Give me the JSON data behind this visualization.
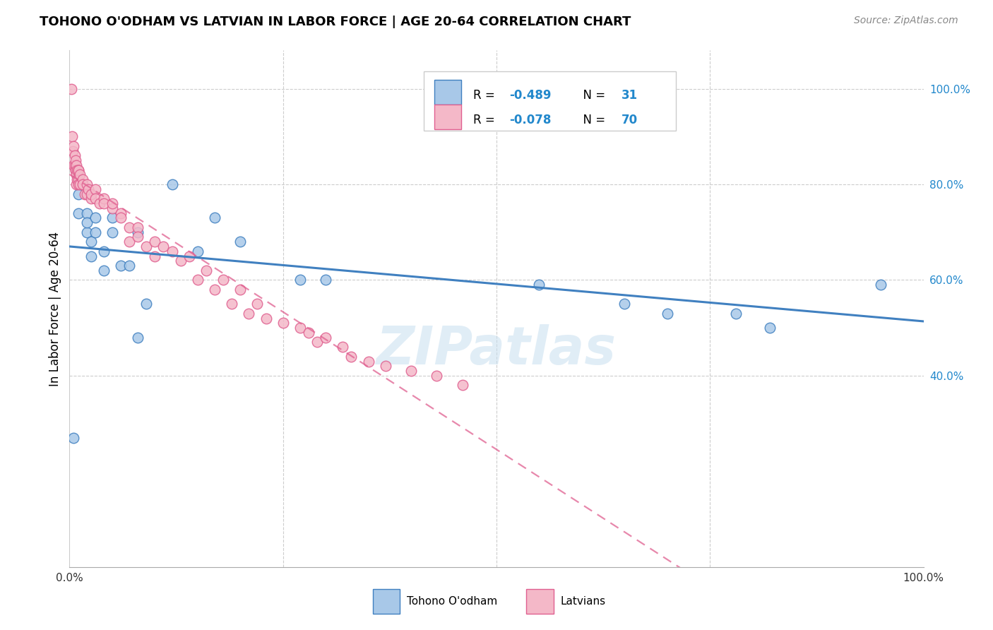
{
  "title": "TOHONO O'ODHAM VS LATVIAN IN LABOR FORCE | AGE 20-64 CORRELATION CHART",
  "source": "Source: ZipAtlas.com",
  "ylabel": "In Labor Force | Age 20-64",
  "xlim": [
    0.0,
    1.0
  ],
  "ylim": [
    0.0,
    1.08
  ],
  "color_blue": "#a8c8e8",
  "color_pink": "#f4b8c8",
  "color_blue_line": "#4080c0",
  "color_pink_line": "#e06090",
  "color_blue_dark": "#3377bb",
  "watermark": "ZIPatlas",
  "tohono_x": [
    0.005,
    0.01,
    0.01,
    0.02,
    0.02,
    0.02,
    0.025,
    0.025,
    0.03,
    0.03,
    0.04,
    0.04,
    0.05,
    0.05,
    0.06,
    0.07,
    0.08,
    0.09,
    0.12,
    0.15,
    0.17,
    0.2,
    0.27,
    0.3,
    0.55,
    0.65,
    0.7,
    0.78,
    0.82,
    0.95,
    0.08
  ],
  "tohono_y": [
    0.27,
    0.74,
    0.78,
    0.7,
    0.74,
    0.72,
    0.65,
    0.68,
    0.73,
    0.7,
    0.66,
    0.62,
    0.7,
    0.73,
    0.63,
    0.63,
    0.7,
    0.55,
    0.8,
    0.66,
    0.73,
    0.68,
    0.6,
    0.6,
    0.59,
    0.55,
    0.53,
    0.53,
    0.5,
    0.59,
    0.48
  ],
  "latvian_x": [
    0.002,
    0.003,
    0.004,
    0.005,
    0.005,
    0.006,
    0.006,
    0.007,
    0.007,
    0.007,
    0.008,
    0.008,
    0.008,
    0.009,
    0.009,
    0.01,
    0.01,
    0.01,
    0.01,
    0.012,
    0.012,
    0.015,
    0.015,
    0.018,
    0.02,
    0.02,
    0.022,
    0.025,
    0.025,
    0.03,
    0.03,
    0.035,
    0.04,
    0.04,
    0.05,
    0.05,
    0.06,
    0.06,
    0.07,
    0.07,
    0.08,
    0.08,
    0.09,
    0.1,
    0.1,
    0.11,
    0.12,
    0.13,
    0.14,
    0.15,
    0.16,
    0.17,
    0.18,
    0.19,
    0.2,
    0.21,
    0.22,
    0.23,
    0.25,
    0.27,
    0.28,
    0.29,
    0.3,
    0.32,
    0.33,
    0.35,
    0.37,
    0.4,
    0.43,
    0.46
  ],
  "latvian_y": [
    1.0,
    0.9,
    0.87,
    0.84,
    0.88,
    0.86,
    0.84,
    0.83,
    0.85,
    0.83,
    0.84,
    0.82,
    0.8,
    0.83,
    0.81,
    0.83,
    0.81,
    0.83,
    0.8,
    0.82,
    0.8,
    0.81,
    0.8,
    0.78,
    0.8,
    0.78,
    0.79,
    0.77,
    0.78,
    0.79,
    0.77,
    0.76,
    0.77,
    0.76,
    0.75,
    0.76,
    0.74,
    0.73,
    0.71,
    0.68,
    0.71,
    0.69,
    0.67,
    0.68,
    0.65,
    0.67,
    0.66,
    0.64,
    0.65,
    0.6,
    0.62,
    0.58,
    0.6,
    0.55,
    0.58,
    0.53,
    0.55,
    0.52,
    0.51,
    0.5,
    0.49,
    0.47,
    0.48,
    0.46,
    0.44,
    0.43,
    0.42,
    0.41,
    0.4,
    0.38
  ]
}
